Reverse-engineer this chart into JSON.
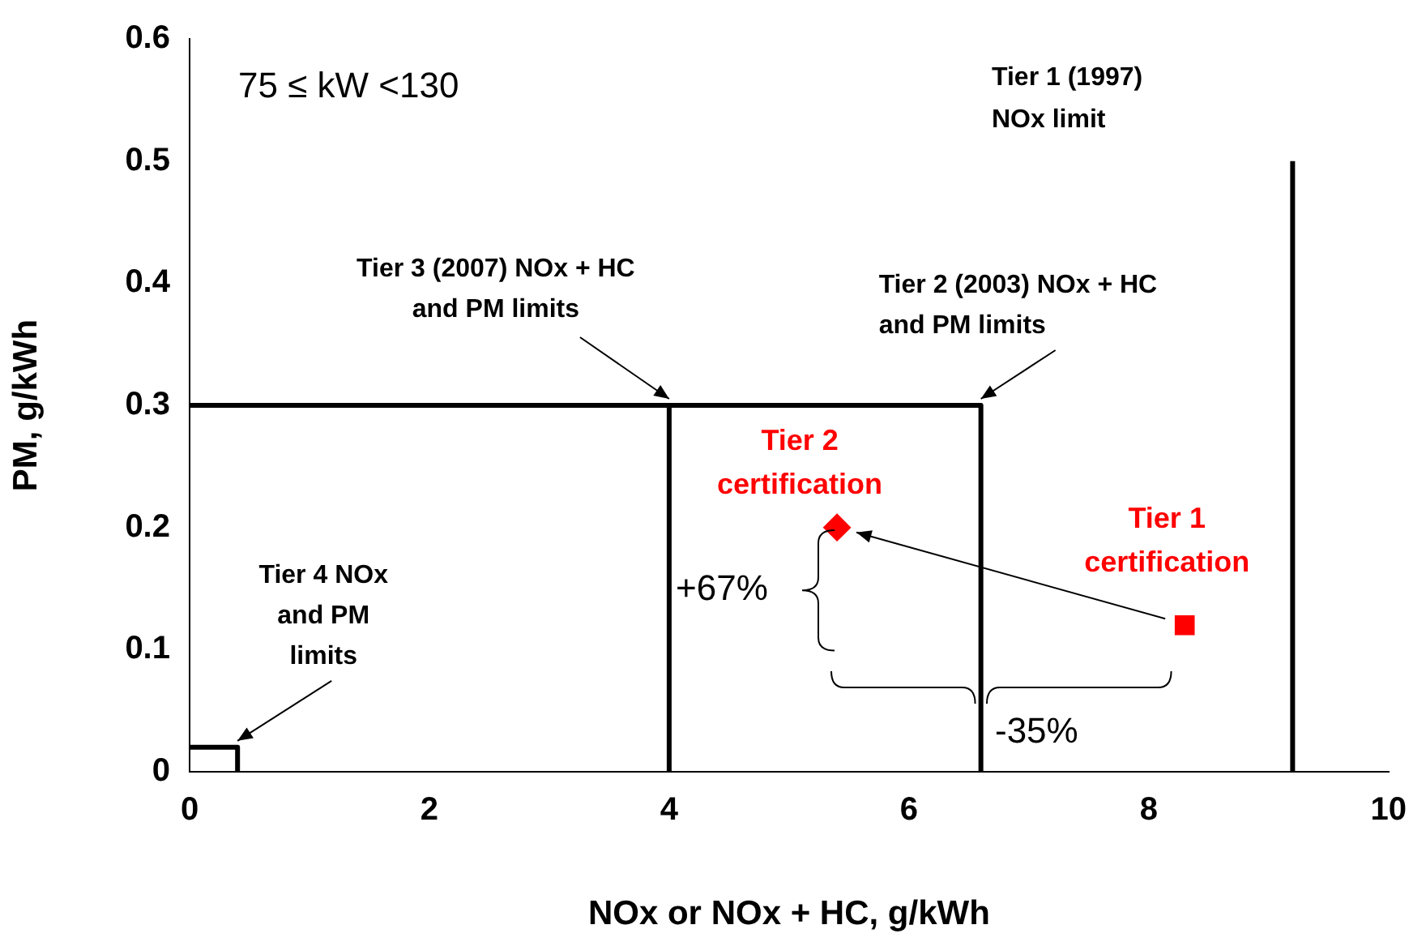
{
  "chart_data": {
    "type": "line",
    "xlabel": "NOx or NOx + HC, g/kWh",
    "ylabel": "PM, g/kWh",
    "xlim": [
      0,
      10
    ],
    "xticks": [
      0,
      2,
      4,
      6,
      8,
      10
    ],
    "ylim": [
      0,
      0.6
    ],
    "yticks": [
      0,
      0.1,
      0.2,
      0.3,
      0.4,
      0.5,
      0.6
    ],
    "grid": false,
    "legend": false,
    "series": [
      {
        "color": "#000000",
        "marker": "none",
        "x": [
          0,
          0.4,
          0.4
        ],
        "values": [
          0.02,
          0.02,
          0
        ]
      },
      {
        "color": "#000000",
        "marker": "none",
        "x": [
          0,
          4,
          4
        ],
        "values": [
          0.3,
          0.3,
          0
        ]
      },
      {
        "color": "#000000",
        "marker": "none",
        "x": [
          4,
          6.6,
          6.6
        ],
        "values": [
          0.3,
          0.3,
          0
        ]
      },
      {
        "color": "#000000",
        "marker": "none",
        "x": [
          9.2,
          9.2
        ],
        "values": [
          0,
          0.5
        ]
      },
      {
        "type": "scatter",
        "name": "Tier 2\ncertification",
        "color": "#ff0000",
        "marker": "diamond",
        "x": [
          5.4
        ],
        "values": [
          0.2
        ]
      },
      {
        "type": "scatter",
        "name": "Tier 1\ncertification",
        "color": "#ff0000",
        "marker": "square",
        "x": [
          8.3
        ],
        "values": [
          0.12
        ]
      }
    ],
    "annotations": [
      "75 ≤ kW <130",
      {
        "text": "Tier 3 (2007) NOx + HC\nand PM limits",
        "x": 4,
        "y": 0.3
      },
      {
        "text": "Tier 2 (2003) NOx + HC\nand PM limits",
        "x": 6.6,
        "y": 0.3
      },
      {
        "text": "Tier 4 NOx\nand PM\nlimits",
        "x": 0.4,
        "y": 0.02
      },
      "Tier 1 (1997)\nNOx limit",
      "+67%",
      "-35%"
    ]
  }
}
